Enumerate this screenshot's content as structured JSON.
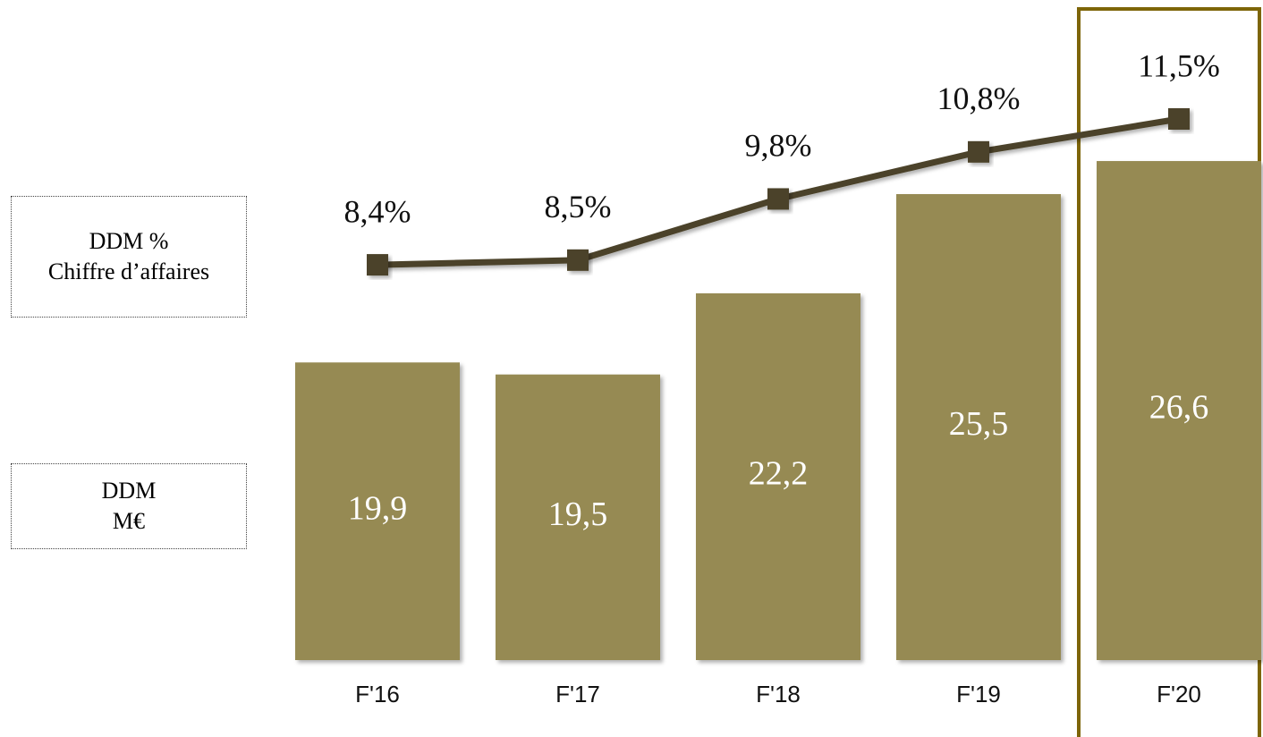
{
  "chart_data": {
    "type": "bar",
    "categories": [
      "F'16",
      "F'17",
      "F'18",
      "F'19",
      "F'20"
    ],
    "series": [
      {
        "name": "DDM\nM€",
        "type": "bar",
        "color": "#968a52",
        "values": [
          19.9,
          19.5,
          22.2,
          25.5,
          26.6
        ],
        "value_labels": [
          "19,9",
          "19,5",
          "22,2",
          "25,5",
          "26,6"
        ]
      },
      {
        "name": "DDM %\nChiffre d’affaires",
        "type": "line",
        "axis": "y2",
        "color": "#4b4329",
        "values": [
          8.4,
          8.5,
          9.8,
          10.8,
          11.5
        ],
        "value_labels": [
          "8,4%",
          "8,5%",
          "9,8%",
          "10,8%",
          "11,5%"
        ]
      }
    ],
    "ylim": [
      10,
      28
    ],
    "y2lim": [
      0,
      11.5
    ]
  }
}
